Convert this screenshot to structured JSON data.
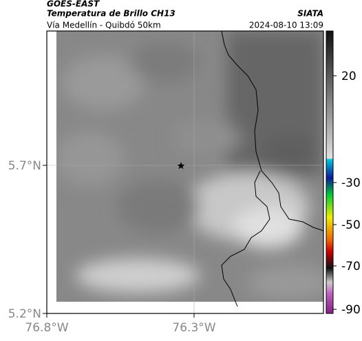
{
  "header": {
    "source": "GOES-EAST",
    "title": "Temperatura de Brillo CH13",
    "subtitle": "Vía Medellín - Quibdó 50km",
    "agency": "SIATA",
    "datetime": "2024-08-10 13:09"
  },
  "map": {
    "lat_labels": [
      "5.7°N",
      "5.2°N"
    ],
    "lon_labels": [
      "76.8°W",
      "76.3°W"
    ]
  },
  "colorbar": {
    "labels": [
      "20",
      "-30",
      "-50",
      "-70",
      "-90"
    ]
  }
}
